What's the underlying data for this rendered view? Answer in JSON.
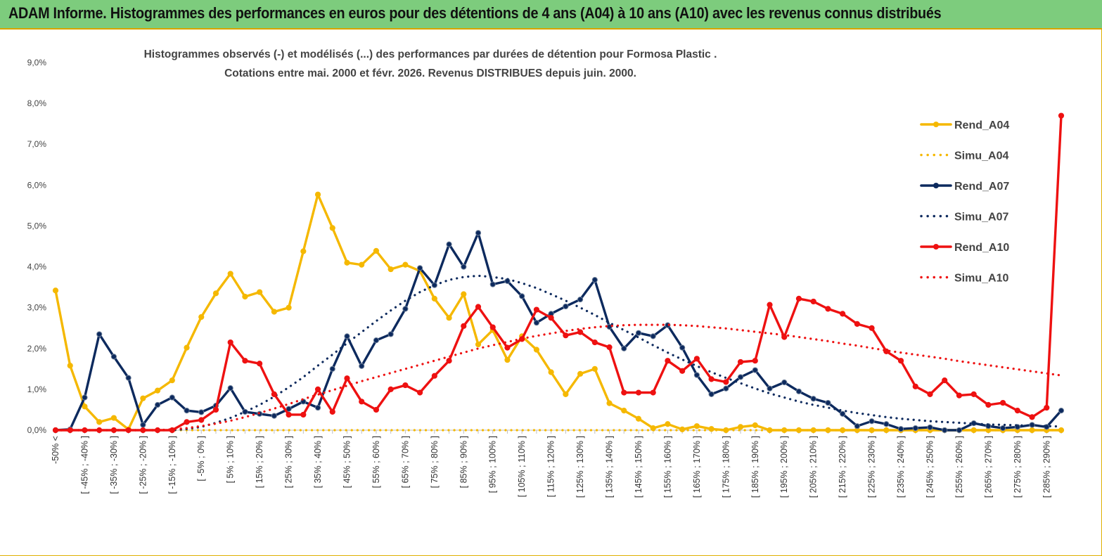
{
  "banner": {
    "title": "ADAM Informe. Histogrammes des performances en euros pour des détentions de 4 ans (A04) à 10 ans (A10) avec les revenus connus distribués"
  },
  "chart_data": {
    "type": "line",
    "title_line1": "Histogrammes observés (-) et modélisés (...) des performances par durées de détention pour Formosa Plastic .",
    "title_line2": "Cotations entre mai. 2000 et févr. 2026. Revenus DISTRIBUES depuis juin. 2000.",
    "ylim": [
      0,
      9
    ],
    "yticks": [
      "0,0%",
      "1,0%",
      "2,0%",
      "3,0%",
      "4,0%",
      "5,0%",
      "6,0%",
      "7,0%",
      "8,0%",
      "9,0%"
    ],
    "grid": false,
    "legend_position": "right",
    "x_labels": [
      "-50% <",
      "[ -45% ; -40% ]",
      "[ -35% ; -30% ]",
      "[ -25% ; -20% ]",
      "[ -15% ; -10% ]",
      "[ -5% ; 0% ]",
      "[ 5% ; 10% ]",
      "[ 15% ; 20% ]",
      "[ 25% ; 30% ]",
      "[ 35% ; 40% ]",
      "[ 45% ; 50% ]",
      "[ 55% ; 60% ]",
      "[ 65% ; 70% ]",
      "[ 75% ; 80% ]",
      "[ 85% ; 90% ]",
      "[ 95% ; 100% ]",
      "[ 105% ; 110% ]",
      "[ 115% ; 120% ]",
      "[ 125% ; 130% ]",
      "[ 135% ; 140% ]",
      "[ 145% ; 150% ]",
      "[ 155% ; 160% ]",
      "[ 165% ; 170% ]",
      "[ 175% ; 180% ]",
      "[ 185% ; 190% ]",
      "[ 195% ; 200% ]",
      "[ 205% ; 210% ]",
      "[ 215% ; 220% ]",
      "[ 225% ; 230% ]",
      "[ 235% ; 240% ]",
      "[ 245% ; 250% ]",
      "[ 255% ; 260% ]",
      "[ 265% ; 270% ]",
      "[ 275% ; 280% ]",
      "[ 285% ; 290% ]"
    ],
    "series": [
      {
        "name": "Rend_A04",
        "style": "solid",
        "marker": true,
        "color": "#f5b800",
        "values": [
          3.42,
          1.58,
          0.58,
          0.2,
          0.3,
          0.02,
          0.78,
          0.97,
          1.22,
          2.02,
          2.77,
          3.35,
          3.83,
          3.27,
          3.38,
          2.9,
          3.0,
          4.38,
          5.77,
          4.95,
          4.1,
          4.05,
          4.39,
          3.94,
          4.05,
          3.9,
          3.22,
          2.75,
          3.33,
          2.1,
          2.45,
          1.72,
          2.3,
          1.97,
          1.42,
          0.88,
          1.38,
          1.5,
          0.66,
          0.48,
          0.28,
          0.05,
          0.15,
          0.02,
          0.1,
          0.03,
          0.0,
          0.08,
          0.12,
          0.0,
          0.0,
          0.0,
          0.0,
          0.0,
          0.0,
          0.0,
          0.0,
          0.0,
          0.0,
          0.0,
          0.0,
          0.0,
          0.0,
          0.0,
          0.0,
          0.0,
          0.0,
          0.0,
          0.0,
          0.0
        ]
      },
      {
        "name": "Simu_A04",
        "style": "dotted",
        "marker": false,
        "color": "#f5b800",
        "values": [
          0.0,
          0.0,
          0.0,
          0.0,
          0.0,
          0.0,
          0.0,
          0.0,
          0.0,
          0.0,
          0.0,
          0.0,
          0.0,
          0.0,
          0.0,
          0.0,
          0.0,
          0.0,
          0.0,
          0.0,
          0.0,
          0.0,
          0.0,
          0.0,
          0.0,
          0.0,
          0.0,
          0.0,
          0.0,
          0.0,
          0.0,
          0.0,
          0.0,
          0.0,
          0.0,
          0.0,
          0.0,
          0.0,
          0.0,
          0.0,
          0.0,
          0.0,
          0.0,
          0.0,
          0.0,
          0.0,
          0.0,
          0.0,
          0.0,
          0.0,
          0.0,
          0.0,
          0.0,
          0.0,
          0.0,
          0.0,
          0.0,
          0.0,
          0.0,
          0.0,
          0.0,
          0.0,
          0.0,
          0.0,
          0.0,
          0.0,
          0.0,
          0.0,
          0.0,
          0.0
        ]
      },
      {
        "name": "Rend_A07",
        "style": "solid",
        "marker": true,
        "color": "#0d2a5e",
        "values": [
          0.0,
          0.02,
          0.8,
          2.35,
          1.8,
          1.28,
          0.13,
          0.62,
          0.8,
          0.48,
          0.44,
          0.6,
          1.03,
          0.45,
          0.4,
          0.35,
          0.52,
          0.7,
          0.55,
          1.5,
          2.3,
          1.57,
          2.2,
          2.35,
          2.97,
          3.97,
          3.55,
          4.55,
          4.0,
          4.83,
          3.57,
          3.65,
          3.28,
          2.63,
          2.85,
          3.03,
          3.2,
          3.68,
          2.53,
          2.0,
          2.38,
          2.3,
          2.57,
          2.02,
          1.35,
          0.88,
          1.02,
          1.3,
          1.47,
          1.02,
          1.17,
          0.95,
          0.77,
          0.67,
          0.4,
          0.1,
          0.22,
          0.15,
          0.03,
          0.05,
          0.07,
          0.0,
          0.0,
          0.17,
          0.1,
          0.05,
          0.08,
          0.13,
          0.08,
          0.48
        ]
      },
      {
        "name": "Simu_A07",
        "style": "dotted",
        "marker": false,
        "color": "#0d2a5e",
        "values": [
          0.0,
          0.0,
          0.0,
          0.0,
          0.0,
          0.0,
          0.0,
          0.0,
          0.0,
          0.03,
          0.08,
          0.18,
          0.3,
          0.45,
          0.62,
          0.82,
          1.05,
          1.3,
          1.58,
          1.85,
          2.13,
          2.4,
          2.67,
          2.93,
          3.17,
          3.38,
          3.55,
          3.68,
          3.75,
          3.78,
          3.75,
          3.7,
          3.6,
          3.48,
          3.33,
          3.17,
          3.0,
          2.82,
          2.63,
          2.45,
          2.27,
          2.08,
          1.9,
          1.73,
          1.57,
          1.42,
          1.28,
          1.15,
          1.02,
          0.9,
          0.8,
          0.7,
          0.62,
          0.55,
          0.48,
          0.42,
          0.37,
          0.32,
          0.28,
          0.25,
          0.22,
          0.2,
          0.18,
          0.16,
          0.14,
          0.13,
          0.12,
          0.11,
          0.1,
          0.09
        ]
      },
      {
        "name": "Rend_A10",
        "style": "solid",
        "marker": true,
        "color": "#ee1111",
        "values": [
          0.0,
          0.0,
          0.0,
          0.0,
          0.0,
          0.0,
          0.0,
          0.0,
          0.0,
          0.2,
          0.25,
          0.5,
          2.15,
          1.7,
          1.63,
          0.88,
          0.38,
          0.38,
          1.0,
          0.45,
          1.27,
          0.7,
          0.5,
          1.0,
          1.1,
          0.92,
          1.33,
          1.7,
          2.55,
          3.02,
          2.52,
          2.02,
          2.23,
          2.95,
          2.75,
          2.32,
          2.4,
          2.15,
          2.03,
          0.92,
          0.92,
          0.92,
          1.7,
          1.45,
          1.75,
          1.25,
          1.18,
          1.67,
          1.7,
          3.07,
          2.28,
          3.22,
          3.15,
          2.97,
          2.85,
          2.6,
          2.5,
          1.93,
          1.7,
          1.07,
          0.88,
          1.22,
          0.85,
          0.88,
          0.62,
          0.67,
          0.48,
          0.32,
          0.55,
          7.7
        ]
      },
      {
        "name": "Simu_A10",
        "style": "dotted",
        "marker": false,
        "color": "#ee1111",
        "values": [
          0.0,
          0.0,
          0.0,
          0.0,
          0.0,
          0.0,
          0.0,
          0.0,
          0.02,
          0.05,
          0.1,
          0.16,
          0.23,
          0.32,
          0.42,
          0.53,
          0.64,
          0.76,
          0.87,
          0.98,
          1.09,
          1.2,
          1.3,
          1.4,
          1.5,
          1.6,
          1.7,
          1.8,
          1.9,
          2.0,
          2.08,
          2.16,
          2.24,
          2.31,
          2.37,
          2.43,
          2.48,
          2.52,
          2.55,
          2.57,
          2.58,
          2.58,
          2.58,
          2.57,
          2.55,
          2.52,
          2.49,
          2.45,
          2.41,
          2.37,
          2.33,
          2.28,
          2.23,
          2.18,
          2.12,
          2.07,
          2.01,
          1.95,
          1.9,
          1.85,
          1.8,
          1.75,
          1.69,
          1.64,
          1.59,
          1.54,
          1.49,
          1.44,
          1.39,
          1.34
        ]
      }
    ]
  }
}
